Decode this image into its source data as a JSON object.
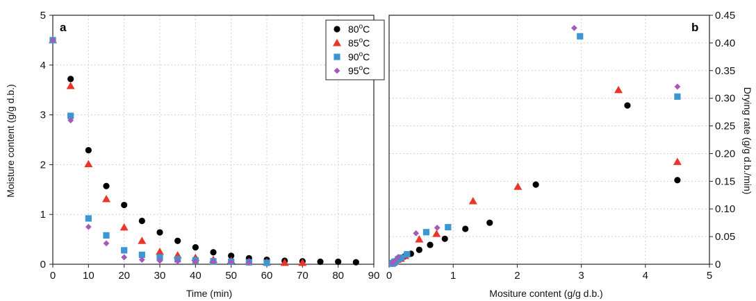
{
  "chart_data": [
    {
      "panel": "a",
      "type": "scatter",
      "xlabel": "Time (min)",
      "ylabel": "Moisture content (g/g d.b.)",
      "xlim": [
        0,
        90
      ],
      "ylim": [
        0,
        5
      ],
      "xticks": [
        0,
        10,
        20,
        30,
        40,
        50,
        60,
        70,
        80,
        90
      ],
      "yticks": [
        0,
        1,
        2,
        3,
        4,
        5
      ],
      "grid": true,
      "legend_position": "top-center",
      "series": [
        {
          "name": "80",
          "marker": "circle",
          "color": "#000000",
          "points": [
            [
              0,
              4.5
            ],
            [
              5,
              3.72
            ],
            [
              10,
              2.29
            ],
            [
              15,
              1.57
            ],
            [
              20,
              1.19
            ],
            [
              25,
              0.87
            ],
            [
              30,
              0.64
            ],
            [
              35,
              0.47
            ],
            [
              40,
              0.34
            ],
            [
              45,
              0.24
            ],
            [
              50,
              0.17
            ],
            [
              55,
              0.12
            ],
            [
              60,
              0.09
            ],
            [
              65,
              0.07
            ],
            [
              70,
              0.06
            ],
            [
              75,
              0.05
            ],
            [
              80,
              0.05
            ],
            [
              85,
              0.04
            ]
          ]
        },
        {
          "name": "85",
          "marker": "triangle",
          "color": "#e8362a",
          "points": [
            [
              0,
              4.5
            ],
            [
              5,
              3.58
            ],
            [
              10,
              2.01
            ],
            [
              15,
              1.31
            ],
            [
              20,
              0.74
            ],
            [
              25,
              0.47
            ],
            [
              30,
              0.25
            ],
            [
              35,
              0.18
            ],
            [
              40,
              0.13
            ],
            [
              45,
              0.09
            ],
            [
              50,
              0.07
            ],
            [
              55,
              0.05
            ],
            [
              60,
              0.04
            ],
            [
              65,
              0.03
            ],
            [
              70,
              0.03
            ]
          ]
        },
        {
          "name": "90",
          "marker": "square",
          "color": "#3d96d4",
          "points": [
            [
              0,
              4.5
            ],
            [
              5,
              2.98
            ],
            [
              10,
              0.92
            ],
            [
              15,
              0.58
            ],
            [
              20,
              0.28
            ],
            [
              25,
              0.19
            ],
            [
              30,
              0.14
            ],
            [
              35,
              0.1
            ],
            [
              40,
              0.08
            ],
            [
              45,
              0.06
            ],
            [
              50,
              0.05
            ],
            [
              55,
              0.04
            ],
            [
              60,
              0.03
            ]
          ]
        },
        {
          "name": "95",
          "marker": "diamond",
          "color": "#a35ab8",
          "points": [
            [
              0,
              4.5
            ],
            [
              5,
              2.89
            ],
            [
              10,
              0.75
            ],
            [
              15,
              0.42
            ],
            [
              20,
              0.14
            ],
            [
              25,
              0.09
            ],
            [
              30,
              0.07
            ],
            [
              35,
              0.06
            ],
            [
              40,
              0.05
            ],
            [
              45,
              0.05
            ],
            [
              50,
              0.04
            ],
            [
              55,
              0.03
            ]
          ]
        }
      ]
    },
    {
      "panel": "b",
      "type": "scatter",
      "xlabel": "Mositure content (g/g d.b.)",
      "ylabel": "Drying rate (g/g d.b./min)",
      "xlim": [
        0,
        5
      ],
      "ylim": [
        0,
        0.45
      ],
      "xticks": [
        0,
        1,
        2,
        3,
        4,
        5
      ],
      "yticks": [
        "0",
        "0.05",
        "0.10",
        "0.15",
        "0.20",
        "0.25",
        "0.30",
        "0.35",
        "0.40",
        "0.45"
      ],
      "grid": true,
      "series": [
        {
          "name": "80",
          "marker": "circle",
          "color": "#000000",
          "points": [
            [
              4.5,
              0.152
            ],
            [
              3.72,
              0.287
            ],
            [
              2.29,
              0.144
            ],
            [
              1.57,
              0.075
            ],
            [
              1.19,
              0.064
            ],
            [
              0.87,
              0.046
            ],
            [
              0.64,
              0.035
            ],
            [
              0.47,
              0.026
            ],
            [
              0.34,
              0.019
            ],
            [
              0.24,
              0.014
            ],
            [
              0.17,
              0.01
            ],
            [
              0.12,
              0.006
            ],
            [
              0.09,
              0.004
            ],
            [
              0.07,
              0.002
            ],
            [
              0.06,
              0.002
            ],
            [
              0.05,
              0.001
            ]
          ]
        },
        {
          "name": "85",
          "marker": "triangle",
          "color": "#e8362a",
          "points": [
            [
              4.5,
              0.185
            ],
            [
              3.58,
              0.315
            ],
            [
              2.01,
              0.14
            ],
            [
              1.31,
              0.114
            ],
            [
              0.74,
              0.055
            ],
            [
              0.47,
              0.045
            ],
            [
              0.25,
              0.015
            ],
            [
              0.18,
              0.01
            ],
            [
              0.13,
              0.008
            ],
            [
              0.09,
              0.005
            ],
            [
              0.07,
              0.003
            ],
            [
              0.05,
              0.002
            ]
          ]
        },
        {
          "name": "90",
          "marker": "square",
          "color": "#3d96d4",
          "points": [
            [
              4.5,
              0.303
            ],
            [
              2.98,
              0.412
            ],
            [
              0.92,
              0.067
            ],
            [
              0.58,
              0.058
            ],
            [
              0.28,
              0.018
            ],
            [
              0.19,
              0.012
            ],
            [
              0.14,
              0.009
            ],
            [
              0.1,
              0.005
            ],
            [
              0.08,
              0.004
            ],
            [
              0.06,
              0.002
            ],
            [
              0.05,
              0.001
            ]
          ]
        },
        {
          "name": "95",
          "marker": "diamond",
          "color": "#a35ab8",
          "points": [
            [
              4.5,
              0.321
            ],
            [
              2.89,
              0.427
            ],
            [
              0.75,
              0.066
            ],
            [
              0.42,
              0.056
            ],
            [
              0.14,
              0.013
            ],
            [
              0.09,
              0.006
            ],
            [
              0.07,
              0.004
            ],
            [
              0.06,
              0.003
            ],
            [
              0.05,
              0.002
            ]
          ]
        }
      ]
    }
  ],
  "legend": {
    "unit_superscript": "o",
    "unit_suffix": "C"
  }
}
